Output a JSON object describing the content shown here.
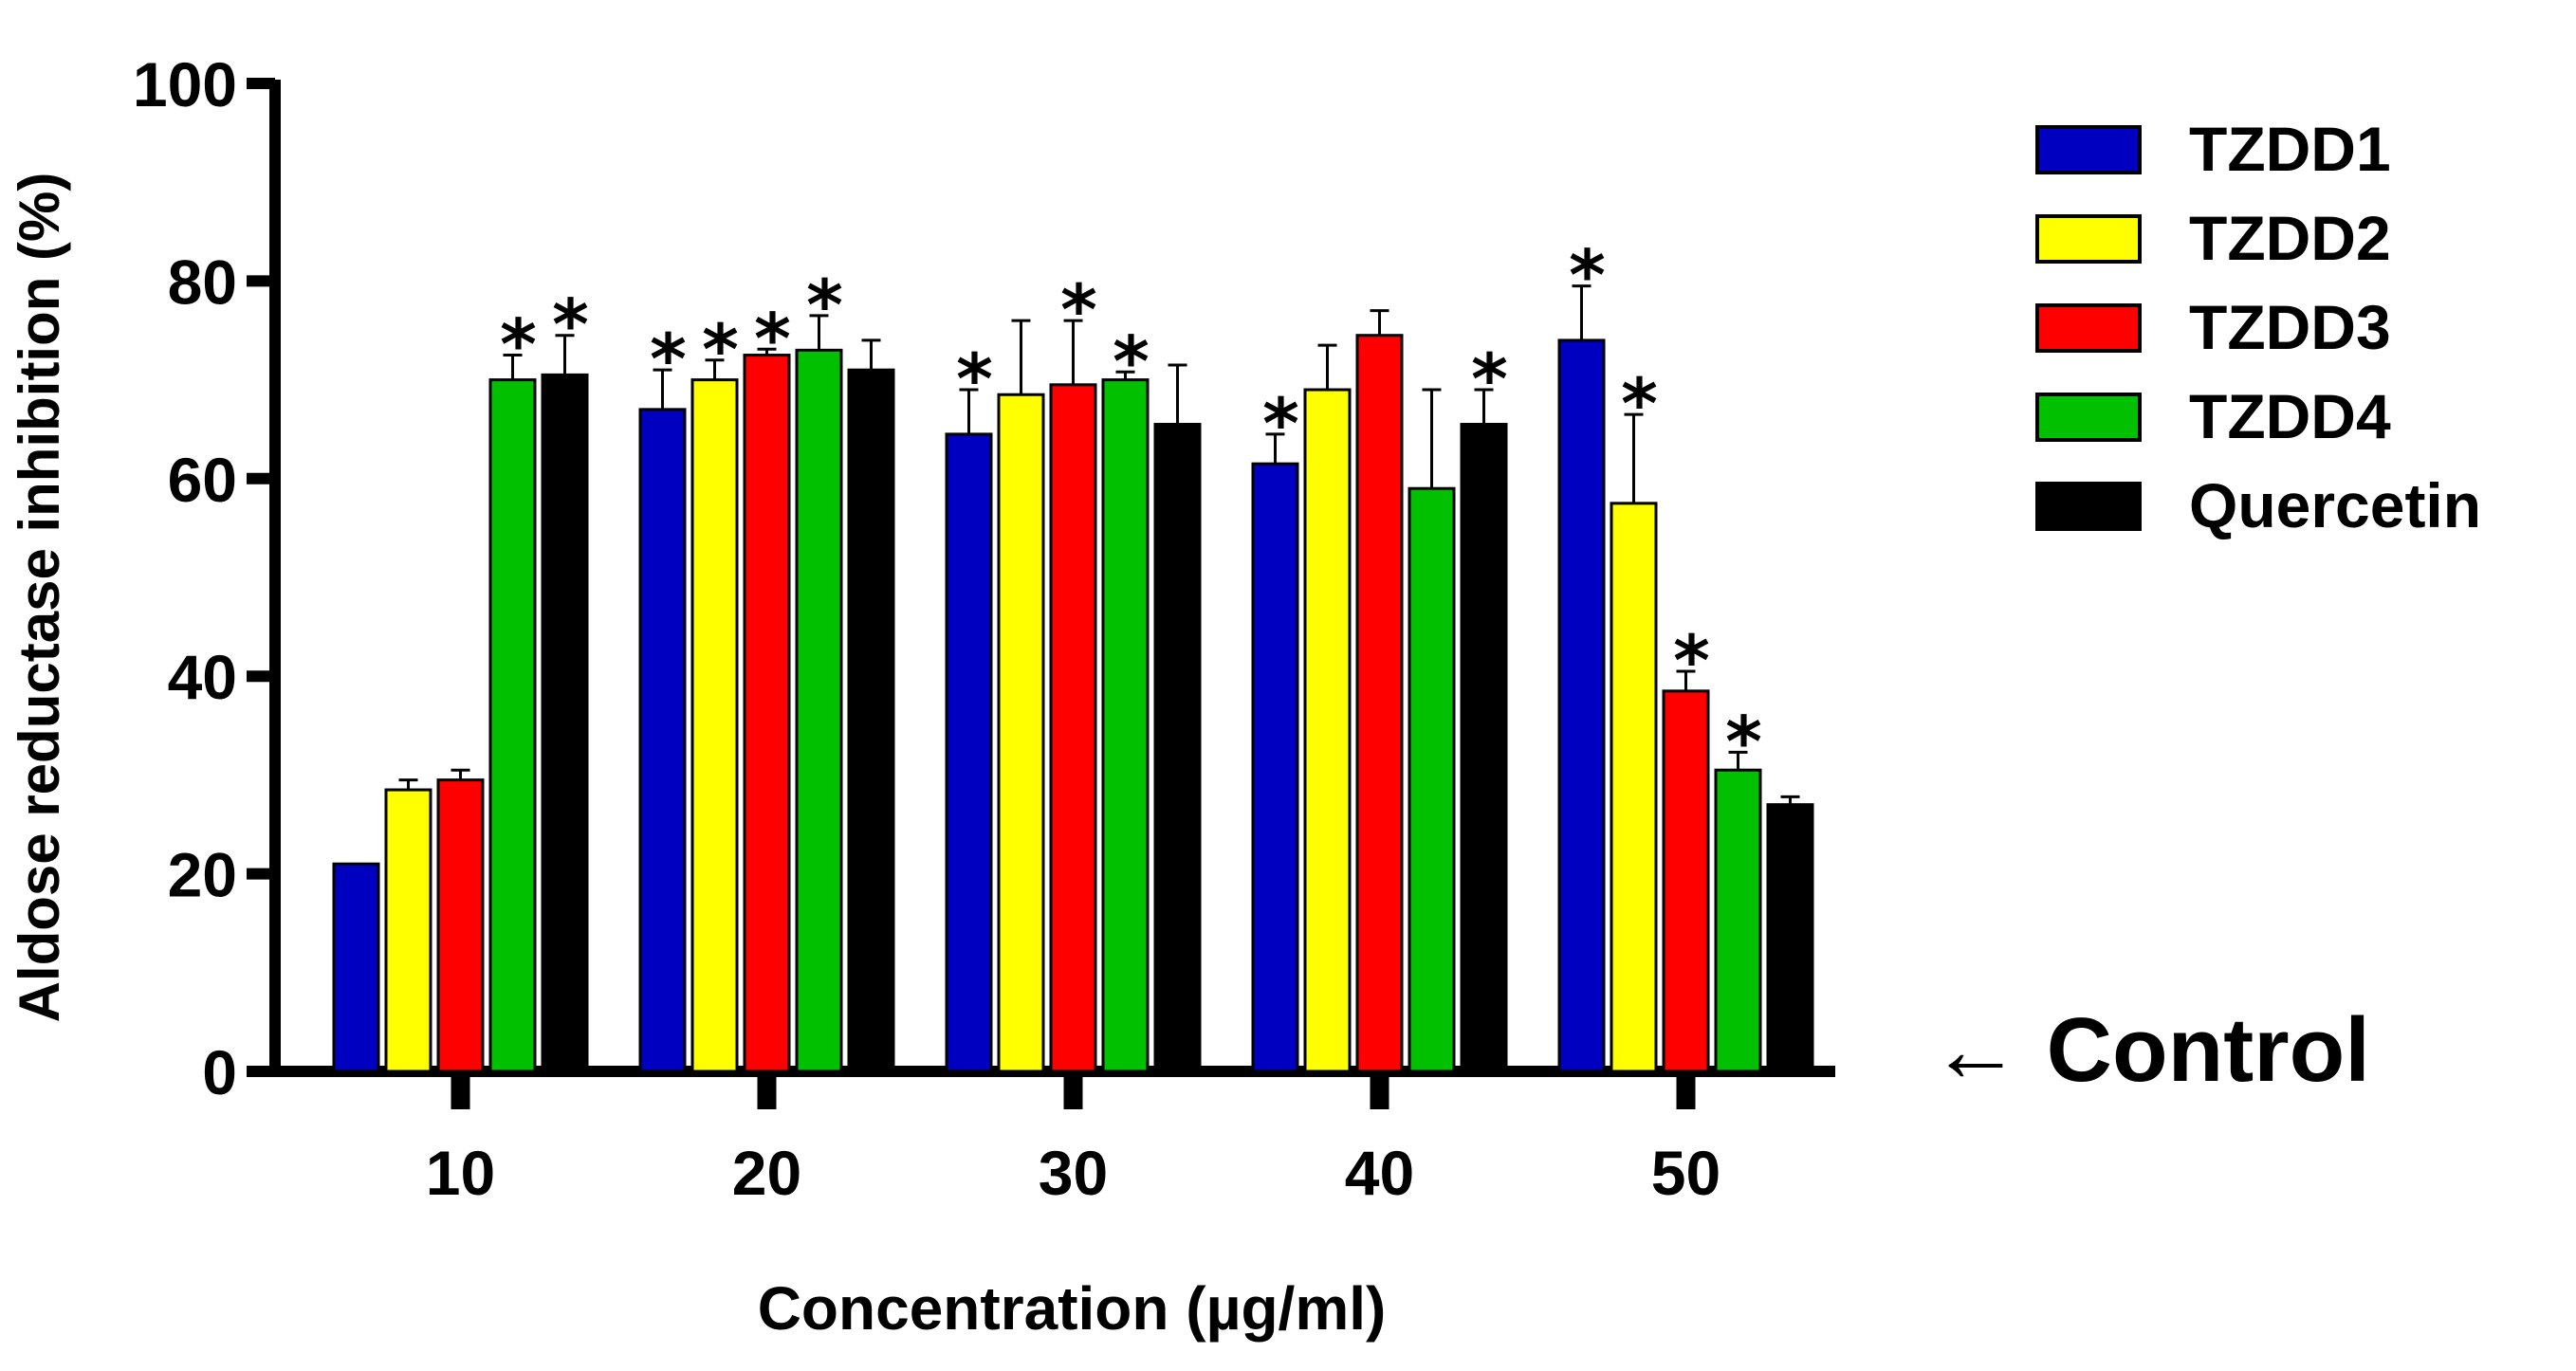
{
  "chart_data": {
    "type": "bar",
    "xlabel": "Concentration (µg/ml)",
    "ylabel": "Aldose reductase inhibition (%)",
    "ylim": [
      0,
      100
    ],
    "yticks": [
      "0",
      "20",
      "40",
      "60",
      "80",
      "100"
    ],
    "categories": [
      "10",
      "20",
      "30",
      "40",
      "50"
    ],
    "series": [
      {
        "name": "TZDD1",
        "color": "#0000c0",
        "values": [
          21,
          67,
          64.5,
          61.5,
          74
        ],
        "errors": [
          0,
          4,
          4.5,
          3,
          5.5
        ],
        "significant": [
          false,
          true,
          true,
          true,
          true
        ]
      },
      {
        "name": "TZDD2",
        "color": "#ffff00",
        "values": [
          28.5,
          70,
          68.5,
          69,
          57.5
        ],
        "errors": [
          1,
          2,
          7.5,
          4.5,
          9
        ],
        "significant": [
          false,
          true,
          false,
          false,
          true
        ]
      },
      {
        "name": "TZDD3",
        "color": "#ff0000",
        "values": [
          29.5,
          72.5,
          69.5,
          74.5,
          38.5
        ],
        "errors": [
          1,
          0.6,
          6.5,
          2.5,
          2
        ],
        "significant": [
          false,
          true,
          true,
          false,
          true
        ]
      },
      {
        "name": "TZDD4",
        "color": "#00c000",
        "values": [
          70,
          73,
          70,
          59,
          30.5
        ],
        "errors": [
          2.5,
          3.5,
          0.8,
          10,
          1.8
        ],
        "significant": [
          true,
          true,
          true,
          false,
          true
        ]
      },
      {
        "name": "Quercetin",
        "color": "#000000",
        "values": [
          70.5,
          71,
          65.5,
          65.5,
          27
        ],
        "errors": [
          4,
          3,
          6,
          3.5,
          0.8
        ],
        "significant": [
          true,
          false,
          false,
          true,
          false
        ]
      }
    ],
    "significance_marker": "⁎",
    "annotation": "← Control",
    "legend_position": "right",
    "grid": false
  }
}
